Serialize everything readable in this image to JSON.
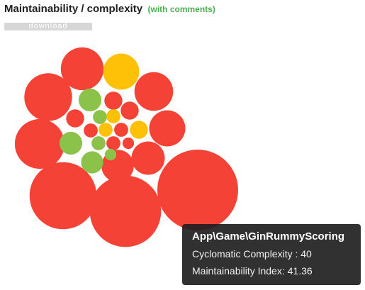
{
  "header": {
    "title": "Maintainability / complexity",
    "subtitle": "(with comments)"
  },
  "toolbar": {
    "download_label": "download"
  },
  "colors": {
    "low": "#f44336",
    "medium": "#ffc107",
    "high": "#8bc34a"
  },
  "chart_data": {
    "type": "bubble",
    "title": "Maintainability / complexity",
    "subtitle": "(with comments)",
    "color_scale": "red = low maintainability, yellow = medium, green = high",
    "bubbles": [
      {
        "color": "red",
        "size": 1.0,
        "name": "App\\Game\\GinRummyScoring",
        "cyclomatic_complexity": 40,
        "maintainability_index": 41.36
      },
      {
        "color": "red",
        "size": 0.78
      },
      {
        "color": "red",
        "size": 0.69
      },
      {
        "color": "red",
        "size": 0.38
      },
      {
        "color": "red",
        "size": 0.35
      },
      {
        "color": "red",
        "size": 0.28
      },
      {
        "color": "red",
        "size": 0.23
      },
      {
        "color": "red",
        "size": 0.2
      },
      {
        "color": "yellow",
        "size": 0.2
      },
      {
        "color": "red",
        "size": 0.17
      },
      {
        "color": "red",
        "size": 0.16
      },
      {
        "color": "green",
        "size": 0.08
      },
      {
        "color": "green",
        "size": 0.075
      },
      {
        "color": "green",
        "size": 0.08
      },
      {
        "color": "red",
        "size": 0.05
      },
      {
        "color": "red",
        "size": 0.05
      },
      {
        "color": "red",
        "size": 0.05
      },
      {
        "color": "yellow",
        "size": 0.05
      },
      {
        "color": "green",
        "size": 0.03
      },
      {
        "color": "yellow",
        "size": 0.03
      },
      {
        "color": "red",
        "size": 0.03
      },
      {
        "color": "green",
        "size": 0.03
      },
      {
        "color": "yellow",
        "size": 0.03
      },
      {
        "color": "red",
        "size": 0.03
      },
      {
        "color": "red",
        "size": 0.03
      },
      {
        "color": "red",
        "size": 0.02
      },
      {
        "color": "green",
        "size": 0.02
      }
    ]
  },
  "tooltip": {
    "name": "App\\Game\\GinRummyScoring",
    "cyclomatic_label": "Cyclomatic Complexity : 40",
    "maintainability_label": "Maintainability Index: 41.36"
  }
}
